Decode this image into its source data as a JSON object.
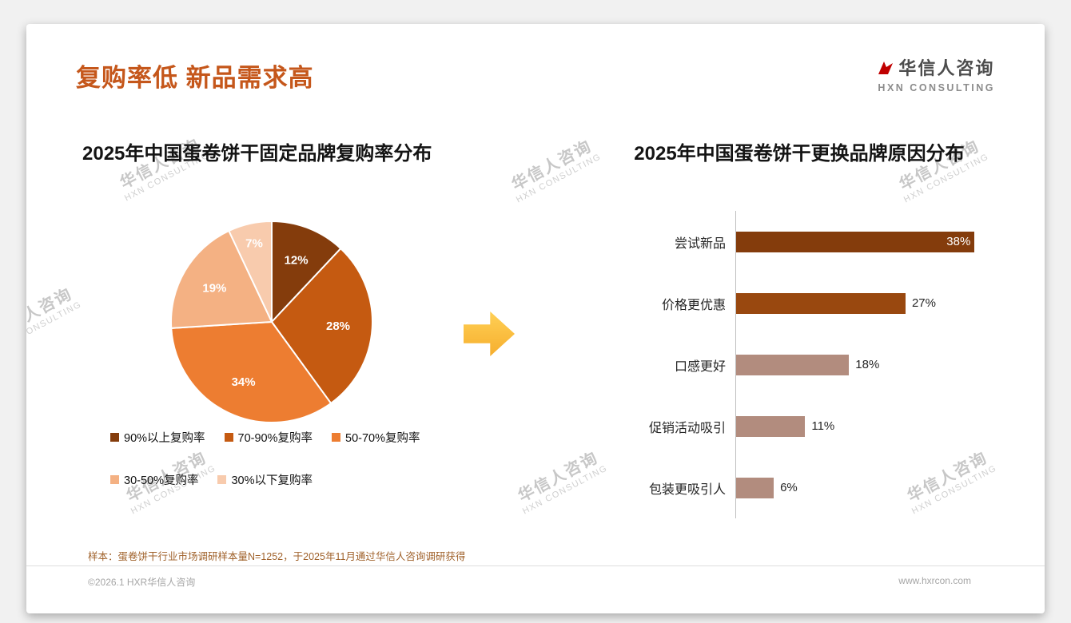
{
  "theme": {
    "title_color": "#C5571B",
    "accent": "#C55A11",
    "arrow_top": "#FFD056",
    "arrow_bottom": "#F6AE2D",
    "footnote_color": "#A0622B",
    "logo_red": "#C00000"
  },
  "page": {
    "title": "复购率低 新品需求高",
    "logo": {
      "name": "华信人咨询",
      "sub": "HXN CONSULTING"
    },
    "watermark": {
      "line1": "华信人咨询",
      "line2": "HXN CONSULTING"
    },
    "footnote": "样本：蛋卷饼干行业市场调研样本量N=1252，于2025年11月通过华信人咨询调研获得",
    "footer": {
      "left": "©2026.1 HXR华信人咨询",
      "right": "www.hxrcon.com"
    }
  },
  "chart_data": [
    {
      "type": "pie",
      "title": "2025年中国蛋卷饼干固定品牌复购率分布",
      "labels": [
        "90%以上复购率",
        "70-90%复购率",
        "50-70%复购率",
        "30-50%复购率",
        "30%以下复购率"
      ],
      "values": [
        12,
        28,
        34,
        19,
        7
      ],
      "unit": "%",
      "colors": [
        "#843C0C",
        "#C55A11",
        "#ED7D31",
        "#F4B183",
        "#F8CBAD"
      ],
      "start_angle": "top",
      "direction": "clockwise",
      "legend_position": "bottom"
    },
    {
      "type": "bar",
      "orientation": "horizontal",
      "title": "2025年中国蛋卷饼干更换品牌原因分布",
      "categories": [
        "尝试新品",
        "价格更优惠",
        "口感更好",
        "促销活动吸引",
        "包装更吸引人"
      ],
      "values": [
        38,
        27,
        18,
        11,
        6
      ],
      "unit": "%",
      "colors": [
        "#843C0C",
        "#99480F",
        "#B28C7E",
        "#B28C7E",
        "#B28C7E"
      ],
      "xlim": [
        0,
        40
      ],
      "grid": false,
      "value_labels": true
    }
  ]
}
